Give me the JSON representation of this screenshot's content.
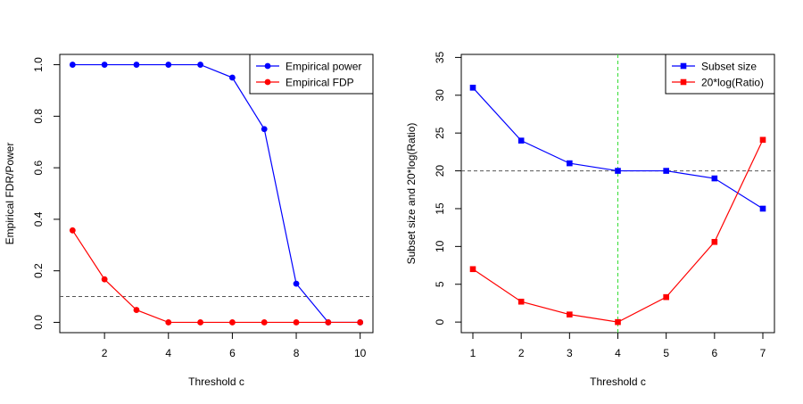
{
  "chart_data": [
    {
      "type": "line",
      "title": "",
      "xlabel": "Threshold c",
      "ylabel": "Empirical FDR/Power",
      "xlim": [
        0.6,
        10.4
      ],
      "ylim": [
        -0.04,
        1.04
      ],
      "xticks": [
        2,
        4,
        6,
        8,
        10
      ],
      "yticks": [
        0.0,
        0.2,
        0.4,
        0.6,
        0.8,
        1.0
      ],
      "ytick_labels": [
        "0.0",
        "0.2",
        "0.4",
        "0.6",
        "0.8",
        "1.0"
      ],
      "hlines": [
        {
          "y": 0.1,
          "color": "#555555",
          "style": "dashed"
        }
      ],
      "vlines": [],
      "x": [
        1,
        2,
        3,
        4,
        5,
        6,
        7,
        8,
        9,
        10
      ],
      "series": [
        {
          "name": "Empirical power",
          "color": "#0000ff",
          "marker": "circle",
          "values": [
            1.0,
            1.0,
            1.0,
            1.0,
            1.0,
            0.95,
            0.75,
            0.15,
            0.0,
            0.0
          ]
        },
        {
          "name": "Empirical FDP",
          "color": "#ff0000",
          "marker": "circle",
          "values": [
            0.357,
            0.167,
            0.048,
            0.0,
            0.0,
            0.0,
            0.0,
            0.0,
            0.0,
            0.0
          ]
        }
      ],
      "legend": "top-right"
    },
    {
      "type": "line",
      "title": "",
      "xlabel": "Threshold c",
      "ylabel": "Subset size and 20*log(Ratio)",
      "xlim": [
        0.76,
        7.24
      ],
      "ylim": [
        -1.4,
        35.4
      ],
      "xticks": [
        1,
        2,
        3,
        4,
        5,
        6,
        7
      ],
      "yticks": [
        0,
        5,
        10,
        15,
        20,
        25,
        30,
        35
      ],
      "ytick_labels": [
        "0",
        "5",
        "10",
        "15",
        "20",
        "25",
        "30",
        "35"
      ],
      "hlines": [
        {
          "y": 20,
          "color": "#555555",
          "style": "dashed"
        }
      ],
      "vlines": [
        {
          "x": 4,
          "color": "#33dd33",
          "style": "dashed"
        }
      ],
      "x": [
        1,
        2,
        3,
        4,
        5,
        6,
        7
      ],
      "series": [
        {
          "name": "Subset size",
          "color": "#0000ff",
          "marker": "square",
          "values": [
            31,
            24,
            21,
            20,
            20,
            19,
            15
          ]
        },
        {
          "name": "20*log(Ratio)",
          "color": "#ff0000",
          "marker": "square",
          "values": [
            7.0,
            2.7,
            1.0,
            0.0,
            3.3,
            10.6,
            24.1
          ]
        }
      ],
      "legend": "top-right"
    }
  ]
}
